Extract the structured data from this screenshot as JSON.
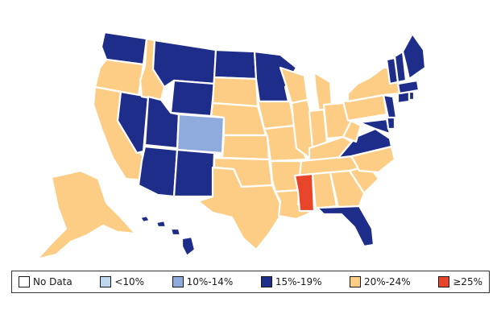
{
  "legend": [
    {
      "label": "No Data",
      "color": "#ffffff"
    },
    {
      "label": "<10%",
      "color": "#bdd7ee"
    },
    {
      "label": "10%-14%",
      "color": "#8faadc"
    },
    {
      "label": "15%-19%",
      "color": "#1f2d8a"
    },
    {
      "label": "20%-24%",
      "color": "#fdcc85"
    },
    {
      "label": "≥25%",
      "color": "#e8442a"
    }
  ],
  "state_categories": {
    "WA": "15%-19%",
    "OR": "20%-24%",
    "CA": "20%-24%",
    "NV": "15%-19%",
    "ID": "20%-24%",
    "MT": "15%-19%",
    "WY": "15%-19%",
    "UT": "15%-19%",
    "AZ": "15%-19%",
    "CO": "10%-14%",
    "NM": "15%-19%",
    "ND": "15%-19%",
    "SD": "20%-24%",
    "NE": "20%-24%",
    "KS": "20%-24%",
    "OK": "20%-24%",
    "TX": "20%-24%",
    "MN": "15%-19%",
    "IA": "20%-24%",
    "MO": "20%-24%",
    "AR": "20%-24%",
    "LA": "20%-24%",
    "WI": "20%-24%",
    "IL": "20%-24%",
    "MI": "20%-24%",
    "IN": "20%-24%",
    "OH": "20%-24%",
    "KY": "20%-24%",
    "TN": "20%-24%",
    "MS": "≥25%",
    "AL": "20%-24%",
    "GA": "20%-24%",
    "FL": "15%-19%",
    "SC": "20%-24%",
    "NC": "20%-24%",
    "VA": "15%-19%",
    "WV": "20%-24%",
    "MD": "15%-19%",
    "DE": "15%-19%",
    "PA": "20%-24%",
    "NJ": "15%-19%",
    "NY": "20%-24%",
    "CT": "15%-19%",
    "RI": "15%-19%",
    "MA": "15%-19%",
    "VT": "15%-19%",
    "NH": "15%-19%",
    "ME": "15%-19%",
    "AK": "20%-24%",
    "HI": "15%-19%"
  }
}
